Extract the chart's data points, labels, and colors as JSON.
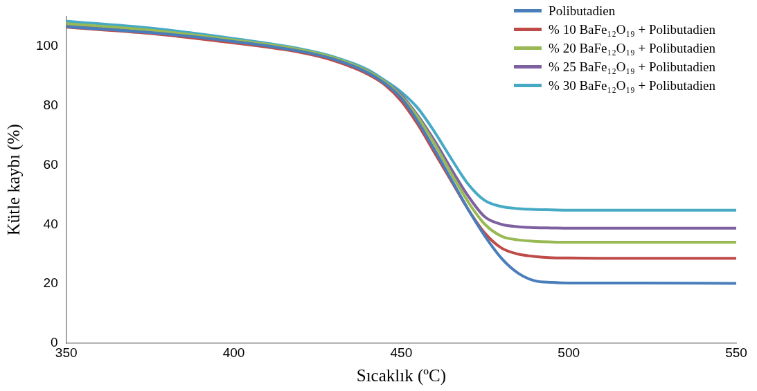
{
  "chart_data": {
    "type": "line",
    "xlabel": "Sıcaklık (ºC)",
    "ylabel": "Kütle kaybı (%)",
    "x": [
      350,
      375,
      400,
      420,
      430,
      440,
      445,
      450,
      455,
      460,
      465,
      470,
      475,
      480,
      485,
      490,
      495,
      500,
      510,
      550
    ],
    "xlim": [
      350,
      550
    ],
    "xticks": [
      350,
      400,
      450,
      500,
      550
    ],
    "ylim": [
      0,
      110
    ],
    "yticks": [
      0,
      20,
      40,
      60,
      80,
      100
    ],
    "legend": "top right",
    "grid": false,
    "series": [
      {
        "name": "Polibutadien",
        "color": "#4a7ebb",
        "values": [
          106.5,
          104.5,
          101.5,
          98.2,
          95.5,
          91,
          87.5,
          82.5,
          74.5,
          65,
          55,
          45,
          36,
          28.5,
          23.5,
          21,
          20.5,
          20.3,
          20.3,
          20.2
        ]
      },
      {
        "name": "% 10 BaFe₁₂O₁₉ + Polibutadien",
        "color": "#be4b48",
        "values": [
          106.3,
          104.2,
          101,
          97.8,
          95,
          90.5,
          87,
          81.5,
          73.5,
          64,
          54.5,
          45,
          37,
          32,
          30,
          29.2,
          28.8,
          28.7,
          28.6,
          28.6
        ]
      },
      {
        "name": "% 20 BaFe₁₂O₁₉ + Polibutadien",
        "color": "#98b954",
        "values": [
          107.5,
          105.3,
          102,
          98.7,
          96,
          91.5,
          88,
          83,
          76,
          67,
          57,
          47.5,
          40,
          36,
          34.8,
          34.3,
          34.1,
          34,
          34,
          34
        ]
      },
      {
        "name": "% 25 BaFe₁₂O₁₉ + Polibutadien",
        "color": "#7d60a0",
        "values": [
          107,
          105,
          101.8,
          98.5,
          95.8,
          91.5,
          88,
          83.5,
          76.5,
          68,
          58.5,
          49.5,
          42.5,
          40,
          39.2,
          38.9,
          38.8,
          38.7,
          38.7,
          38.7
        ]
      },
      {
        "name": "% 30 BaFe₁₂O₁₉ + Polibutadien",
        "color": "#46aac5",
        "values": [
          108.3,
          106,
          102.5,
          99,
          96.3,
          92,
          88.5,
          84.5,
          79,
          71,
          62,
          53.5,
          48,
          46,
          45.3,
          45,
          44.9,
          44.8,
          44.8,
          44.8
        ]
      }
    ]
  }
}
